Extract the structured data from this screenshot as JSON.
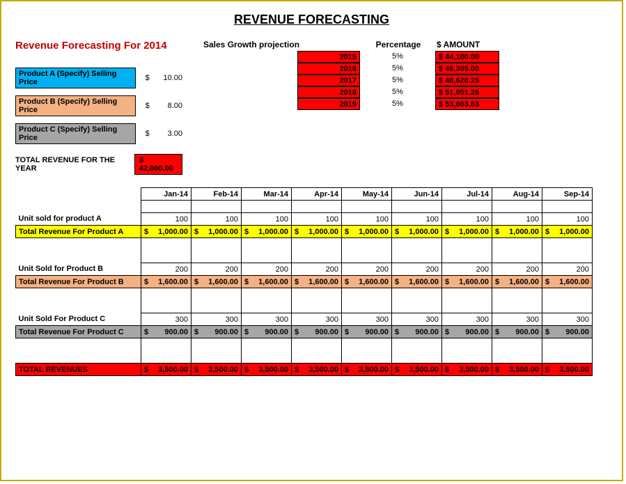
{
  "title": "REVENUE FORECASTING",
  "subtitle": "Revenue Forecasting For 2014",
  "products": [
    {
      "label": "Product A (Specify) Selling Price",
      "bg": "#00b0f0",
      "price": "10.00"
    },
    {
      "label": "Product B (Specify) Selling Price",
      "bg": "#f4b183",
      "price": "8.00"
    },
    {
      "label": "Product C (Specify) Selling Price",
      "bg": "#a6a6a6",
      "price": "3.00"
    }
  ],
  "totalYear": {
    "label": "TOTAL REVENUE FOR THE YEAR",
    "value": "$ 42,000.00"
  },
  "projection": {
    "h1": "Sales Growth projection",
    "h2": "Percentage",
    "h3": "$ AMOUNT",
    "rows": [
      {
        "year": "2015",
        "pct": "5%",
        "amt": "$ 44,100.00"
      },
      {
        "year": "2016",
        "pct": "5%",
        "amt": "$ 46,305.00"
      },
      {
        "year": "2017",
        "pct": "5%",
        "amt": "$ 48,620.25"
      },
      {
        "year": "2018",
        "pct": "5%",
        "amt": "$ 51,051.26"
      },
      {
        "year": "2019",
        "pct": "5%",
        "amt": "$ 53,603.83"
      }
    ]
  },
  "months": [
    "Jan-14",
    "Feb-14",
    "Mar-14",
    "Apr-14",
    "May-14",
    "Jun-14",
    "Jul-14",
    "Aug-14",
    "Sep-14"
  ],
  "table": {
    "rows": [
      {
        "label": "Unit sold for  product A",
        "bold": true,
        "bg": "",
        "vals": [
          "100",
          "100",
          "100",
          "100",
          "100",
          "100",
          "100",
          "100",
          "100"
        ],
        "cur": false
      },
      {
        "label": "Total Revenue For Product A",
        "bold": true,
        "bg": "#ffff00",
        "vals": [
          "1,000.00",
          "1,000.00",
          "1,000.00",
          "1,000.00",
          "1,000.00",
          "1,000.00",
          "1,000.00",
          "1,000.00",
          "1,000.00"
        ],
        "cur": true
      },
      {
        "spacer": true
      },
      {
        "label": "Unit Sold for Product B",
        "bold": true,
        "bg": "",
        "vals": [
          "200",
          "200",
          "200",
          "200",
          "200",
          "200",
          "200",
          "200",
          "200"
        ],
        "cur": false
      },
      {
        "label": "Total Revenue For Product B",
        "bold": true,
        "bg": "#f4b183",
        "vals": [
          "1,600.00",
          "1,600.00",
          "1,600.00",
          "1,600.00",
          "1,600.00",
          "1,600.00",
          "1,600.00",
          "1,600.00",
          "1,600.00"
        ],
        "cur": true
      },
      {
        "spacer": true
      },
      {
        "label": "Unit Sold For Product C",
        "bold": true,
        "bg": "",
        "vals": [
          "300",
          "300",
          "300",
          "300",
          "300",
          "300",
          "300",
          "300",
          "300"
        ],
        "cur": false
      },
      {
        "label": "Total Revenue For Product C",
        "bold": true,
        "bg": "#a6a6a6",
        "vals": [
          "900.00",
          "900.00",
          "900.00",
          "900.00",
          "900.00",
          "900.00",
          "900.00",
          "900.00",
          "900.00"
        ],
        "cur": true
      },
      {
        "spacer": true
      },
      {
        "label": "TOTAL REVENUES",
        "bold": true,
        "bg": "#ff0000",
        "fg": "#000",
        "vals": [
          "3,500.00",
          "3,500.00",
          "3,500.00",
          "3,500.00",
          "3,500.00",
          "3,500.00",
          "3,500.00",
          "3,500.00",
          "3,500.00"
        ],
        "cur": true
      }
    ]
  },
  "colors": {
    "red": "#ff0000",
    "yellow": "#ffff00",
    "peach": "#f4b183",
    "gray": "#a6a6a6",
    "cyan": "#00b0f0"
  }
}
